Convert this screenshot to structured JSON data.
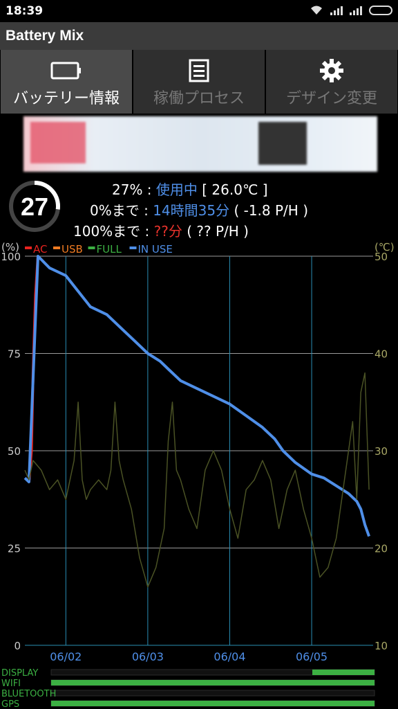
{
  "status_bar": {
    "time": "18:39"
  },
  "app": {
    "title": "Battery Mix"
  },
  "tabs": [
    {
      "label": "バッテリー情報",
      "icon": "battery-icon",
      "active": true
    },
    {
      "label": "稼働プロセス",
      "icon": "list-icon",
      "active": false
    },
    {
      "label": "デザイン変更",
      "icon": "gear-icon",
      "active": false
    }
  ],
  "battery": {
    "gauge_value": "27",
    "level_fraction": 0.27,
    "line1": {
      "percent": "27%",
      "sep": " : ",
      "status": "使用中",
      "temp": " [ 26.0℃ ]"
    },
    "line2": {
      "label": "0%まで",
      "sep": " : ",
      "time": "14時間35分",
      "rate": " ( -1.8 P/H )"
    },
    "line3": {
      "label": "100%まで",
      "sep": " : ",
      "time": "??分",
      "rate": " ( ?? P/H )"
    }
  },
  "chart_data": {
    "type": "line",
    "left_axis_unit": "(%)",
    "right_axis_unit": "(℃)",
    "left_ticks": [
      "0",
      "25",
      "50",
      "75",
      "100"
    ],
    "right_ticks": [
      "10",
      "20",
      "30",
      "40",
      "50"
    ],
    "ylim": [
      0,
      100
    ],
    "y2lim": [
      10,
      50
    ],
    "x_tick_labels": [
      "06/02",
      "06/03",
      "06/04",
      "06/05"
    ],
    "x_range_days": [
      0,
      4.25
    ],
    "x_tick_positions": [
      0.5,
      1.5,
      2.5,
      3.5
    ],
    "legend": [
      "AC",
      "USB",
      "FULL",
      "IN USE"
    ],
    "legend_colors": [
      "#e8231f",
      "#f07b22",
      "#3cb043",
      "#4f8fe8"
    ],
    "series": [
      {
        "name": "AC",
        "color": "#e8231f",
        "x": [
          0.05,
          0.08,
          0.1,
          0.13,
          0.16
        ],
        "y": [
          42,
          50,
          70,
          90,
          100
        ]
      },
      {
        "name": "IN USE",
        "color": "#4f8fe8",
        "x": [
          0,
          0.05,
          0.16,
          0.3,
          0.5,
          0.65,
          0.8,
          1.0,
          1.2,
          1.35,
          1.5,
          1.65,
          1.75,
          1.9,
          2.1,
          2.3,
          2.5,
          2.7,
          2.9,
          3.05,
          3.15,
          3.3,
          3.5,
          3.65,
          3.8,
          3.95,
          4.05,
          4.1,
          4.15,
          4.2
        ],
        "y": [
          43,
          42,
          100,
          97,
          95,
          91,
          87,
          85,
          81,
          78,
          75,
          73,
          71,
          68,
          66,
          64,
          62,
          59,
          56,
          53,
          50,
          47,
          44,
          43,
          41,
          39,
          37,
          35,
          31,
          28
        ]
      },
      {
        "name": "Temperature (℃)",
        "axis": "right",
        "color": "#4a5224",
        "x": [
          0,
          0.05,
          0.1,
          0.2,
          0.3,
          0.4,
          0.5,
          0.6,
          0.65,
          0.7,
          0.75,
          0.8,
          0.9,
          1.0,
          1.05,
          1.1,
          1.15,
          1.2,
          1.3,
          1.4,
          1.5,
          1.6,
          1.7,
          1.75,
          1.8,
          1.85,
          1.9,
          2.0,
          2.1,
          2.2,
          2.3,
          2.4,
          2.5,
          2.6,
          2.7,
          2.8,
          2.9,
          3.0,
          3.1,
          3.2,
          3.3,
          3.4,
          3.5,
          3.6,
          3.7,
          3.8,
          3.9,
          4.0,
          4.05,
          4.1,
          4.15,
          4.2
        ],
        "y": [
          28,
          27,
          29,
          28,
          26,
          27,
          25,
          29,
          35,
          27,
          25,
          26,
          27,
          26,
          28,
          35,
          29,
          27,
          24,
          19,
          16,
          18,
          22,
          31,
          35,
          28,
          27,
          24,
          22,
          28,
          30,
          28,
          24,
          21,
          26,
          27,
          29,
          27,
          22,
          26,
          28,
          24,
          21,
          17,
          18,
          21,
          27,
          33,
          25,
          36,
          38,
          26
        ]
      }
    ]
  },
  "usage_rows": [
    {
      "label": "DISPLAY",
      "fraction": 0.15
    },
    {
      "label": "WIFI",
      "fraction": 1.0
    },
    {
      "label": "BLUETOOTH",
      "fraction": 0
    },
    {
      "label": "GPS",
      "fraction": 1.0
    }
  ]
}
